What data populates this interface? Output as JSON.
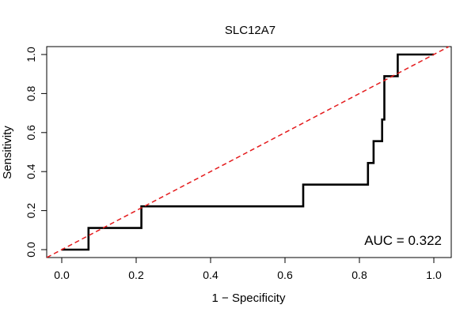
{
  "chart_data": {
    "type": "line",
    "title": "SLC12A7",
    "xlabel": "1 − Specificity",
    "ylabel": "Sensitivity",
    "xlim": [
      0,
      1
    ],
    "ylim": [
      0,
      1
    ],
    "x_ticks": [
      "0.0",
      "0.2",
      "0.4",
      "0.6",
      "0.8",
      "1.0"
    ],
    "y_ticks": [
      "0.0",
      "0.2",
      "0.4",
      "0.6",
      "0.8",
      "1.0"
    ],
    "annotation": "AUC = 0.322",
    "series": [
      {
        "name": "ROC curve",
        "color": "#000000",
        "x": [
          0,
          0.072,
          0.072,
          0.214,
          0.214,
          0.649,
          0.649,
          0.823,
          0.823,
          0.838,
          0.838,
          0.861,
          0.861,
          0.867,
          0.867,
          0.874,
          0.874,
          0.903,
          0.903,
          1.0
        ],
        "y": [
          0,
          0,
          0.111,
          0.111,
          0.222,
          0.222,
          0.333,
          0.333,
          0.444,
          0.444,
          0.556,
          0.556,
          0.667,
          0.667,
          0.889,
          0.889,
          0.889,
          0.889,
          1.0,
          1.0
        ]
      },
      {
        "name": "chance diagonal",
        "color": "#e41a1c",
        "style": "dashed",
        "x": [
          -0.04,
          1.04
        ],
        "y": [
          -0.04,
          1.04
        ]
      }
    ]
  }
}
